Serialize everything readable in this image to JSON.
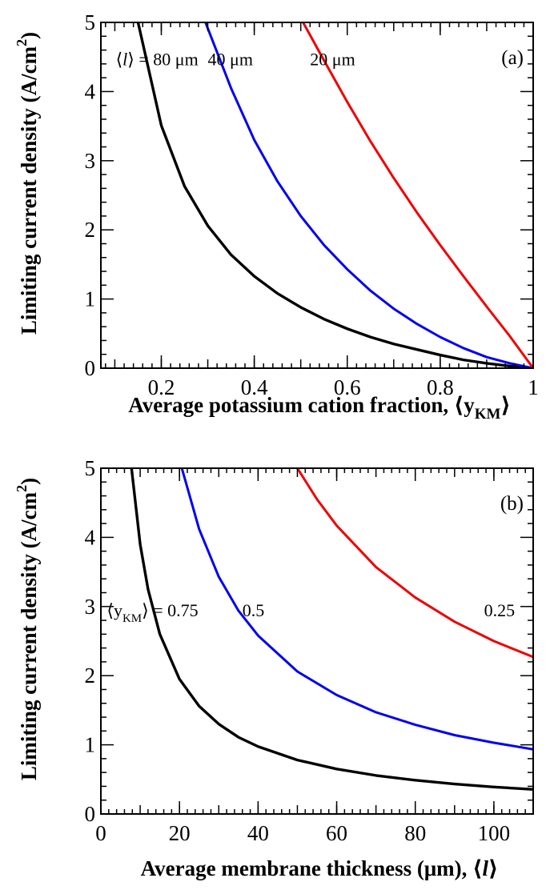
{
  "chart_data": [
    {
      "type": "line",
      "panel_label": "(a)",
      "xlabel": "Average potassium cation fraction, ⟨y",
      "xlabel_sub": "KM",
      "xlabel_suffix": "⟩",
      "ylabel": "Limiting current density (A/cm",
      "ylabel_sup": "2",
      "ylabel_suffix": ")",
      "xlim": [
        0.07,
        1.0
      ],
      "ylim": [
        0,
        5
      ],
      "x_ticks": [
        0.2,
        0.4,
        0.6,
        0.8,
        1
      ],
      "x_tick_labels": [
        "0.2",
        "0.4",
        "0.6",
        "0.8",
        "1"
      ],
      "y_ticks": [
        0,
        1,
        2,
        3,
        4,
        5
      ],
      "y_tick_labels": [
        "0",
        "1",
        "2",
        "3",
        "4",
        "5"
      ],
      "grid": false,
      "series": [
        {
          "color": "#000000",
          "x": [
            0.15,
            0.2,
            0.25,
            0.3,
            0.35,
            0.4,
            0.45,
            0.5,
            0.55,
            0.6,
            0.65,
            0.7,
            0.75,
            0.8,
            0.85,
            0.9,
            0.95,
            1.0
          ],
          "y": [
            5.0,
            3.51,
            2.63,
            2.06,
            1.64,
            1.33,
            1.08,
            0.88,
            0.71,
            0.57,
            0.45,
            0.35,
            0.27,
            0.19,
            0.12,
            0.07,
            0.03,
            0.0
          ]
        },
        {
          "color": "#0000ee",
          "x": [
            0.295,
            0.35,
            0.4,
            0.45,
            0.5,
            0.55,
            0.6,
            0.65,
            0.7,
            0.75,
            0.8,
            0.85,
            0.9,
            0.95,
            1.0
          ],
          "y": [
            5.0,
            4.05,
            3.3,
            2.7,
            2.2,
            1.78,
            1.43,
            1.12,
            0.86,
            0.64,
            0.45,
            0.29,
            0.16,
            0.07,
            0.0
          ]
        },
        {
          "color": "#ee0000",
          "x": [
            0.505,
            0.55,
            0.6,
            0.65,
            0.7,
            0.75,
            0.8,
            0.85,
            0.9,
            0.95,
            1.0
          ],
          "y": [
            5.0,
            4.45,
            3.85,
            3.28,
            2.75,
            2.25,
            1.78,
            1.33,
            0.89,
            0.46,
            0.0
          ]
        }
      ],
      "annotations": [
        {
          "pre": "⟨",
          "italic": "l",
          "post": "⟩ = 80 μm",
          "x": 0.102,
          "y": 4.38
        },
        {
          "text": "40 μm",
          "x": 0.3,
          "y": 4.38
        },
        {
          "text": "20 μm",
          "x": 0.52,
          "y": 4.38
        }
      ]
    },
    {
      "type": "line",
      "panel_label": "(b)",
      "xlabel": "Average membrane thickness (μm), ⟨",
      "xlabel_italic": "l",
      "xlabel_suffix": "⟩",
      "ylabel": "Limiting current density (A/cm",
      "ylabel_sup": "2",
      "ylabel_suffix": ")",
      "xlim": [
        0,
        110
      ],
      "ylim": [
        0,
        5
      ],
      "x_ticks": [
        0,
        20,
        40,
        60,
        80,
        100
      ],
      "x_tick_labels": [
        "0",
        "20",
        "40",
        "60",
        "80",
        "100"
      ],
      "y_ticks": [
        0,
        1,
        2,
        3,
        4,
        5
      ],
      "y_tick_labels": [
        "0",
        "1",
        "2",
        "3",
        "4",
        "5"
      ],
      "grid": false,
      "series": [
        {
          "color": "#000000",
          "x": [
            7.8,
            10,
            12,
            15,
            20,
            25,
            30,
            35,
            40,
            50,
            60,
            70,
            80,
            90,
            100,
            110
          ],
          "y": [
            5.0,
            3.9,
            3.25,
            2.6,
            1.95,
            1.56,
            1.3,
            1.11,
            0.975,
            0.78,
            0.65,
            0.557,
            0.488,
            0.433,
            0.39,
            0.355
          ]
        },
        {
          "color": "#0000ee",
          "x": [
            20.6,
            25,
            30,
            35,
            40,
            50,
            60,
            70,
            80,
            90,
            100,
            110
          ],
          "y": [
            5.0,
            4.12,
            3.43,
            2.94,
            2.58,
            2.06,
            1.72,
            1.47,
            1.29,
            1.14,
            1.03,
            0.935
          ]
        },
        {
          "color": "#ee0000",
          "x": [
            50,
            55,
            60,
            70,
            80,
            90,
            100,
            110
          ],
          "y": [
            5.0,
            4.55,
            4.17,
            3.57,
            3.13,
            2.78,
            2.5,
            2.27
          ]
        }
      ],
      "annotations": [
        {
          "pre": "⟨y",
          "sub": "KM",
          "post": "⟩ = 0.75",
          "x": 1.5,
          "y": 2.86
        },
        {
          "text": "0.5",
          "x": 36,
          "y": 2.86
        },
        {
          "text": "0.25",
          "x": 97.5,
          "y": 2.86
        }
      ]
    }
  ]
}
